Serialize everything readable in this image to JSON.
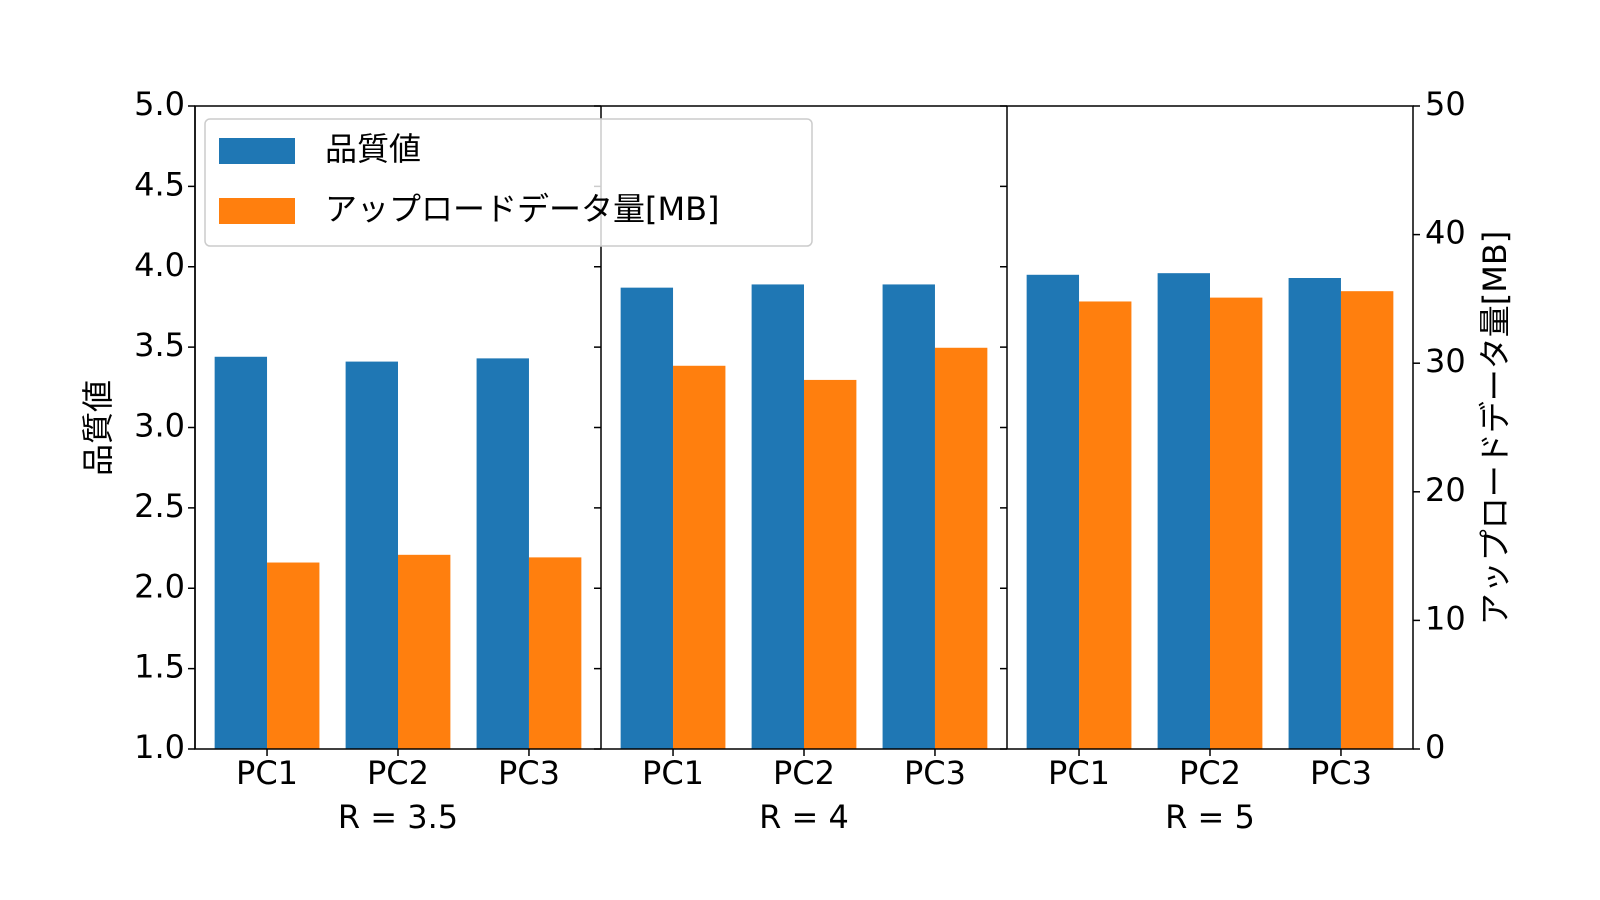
{
  "chart_data": {
    "type": "bar",
    "ylabel": "品質値",
    "y2label": "アップロードデータ量[MB]",
    "ylim": [
      1.0,
      5.0
    ],
    "yticks": [
      {
        "value": 1.0,
        "label": "1.0"
      },
      {
        "value": 1.5,
        "label": "1.5"
      },
      {
        "value": 2.0,
        "label": "2.0"
      },
      {
        "value": 2.5,
        "label": "2.5"
      },
      {
        "value": 3.0,
        "label": "3.0"
      },
      {
        "value": 3.5,
        "label": "3.5"
      },
      {
        "value": 4.0,
        "label": "4.0"
      },
      {
        "value": 4.5,
        "label": "4.5"
      },
      {
        "value": 5.0,
        "label": "5.0"
      }
    ],
    "y2lim": [
      0,
      50
    ],
    "y2ticks": [
      0,
      10,
      20,
      30,
      40,
      50
    ],
    "legend": "upper left",
    "series": [
      {
        "name": "品質値",
        "color": "#1f77b4",
        "axis": "y"
      },
      {
        "name": "アップロードデータ量[MB]",
        "color": "#ff7f0e",
        "axis": "y2"
      }
    ],
    "panels": [
      {
        "xlabel": "R = 3.5",
        "categories": [
          "PC1",
          "PC2",
          "PC3"
        ],
        "values": [
          [
            3.44,
            3.41,
            3.43
          ],
          [
            14.5,
            15.1,
            14.9
          ]
        ]
      },
      {
        "xlabel": "R = 4",
        "categories": [
          "PC1",
          "PC2",
          "PC3"
        ],
        "values": [
          [
            3.87,
            3.89,
            3.89
          ],
          [
            29.8,
            28.7,
            31.2
          ]
        ]
      },
      {
        "xlabel": "R = 5",
        "categories": [
          "PC1",
          "PC2",
          "PC3"
        ],
        "values": [
          [
            3.95,
            3.96,
            3.93
          ],
          [
            34.8,
            35.1,
            35.6
          ]
        ]
      }
    ]
  }
}
